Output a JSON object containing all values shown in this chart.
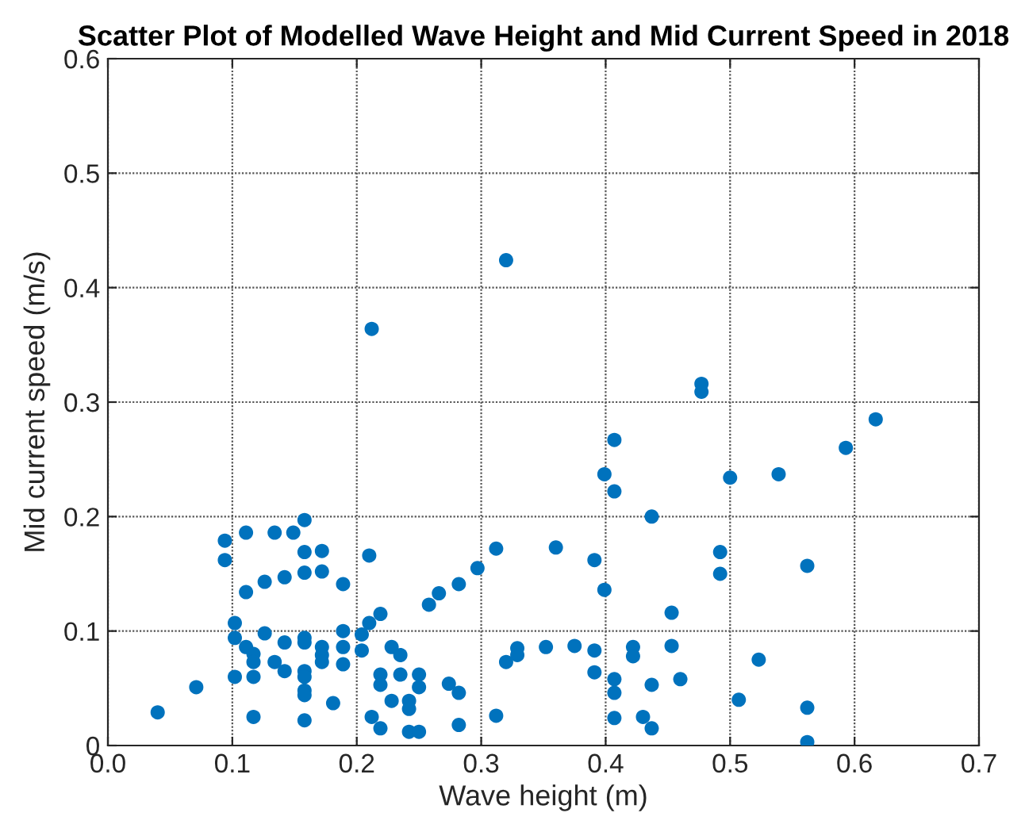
{
  "chart_data": {
    "type": "scatter",
    "title": "Scatter Plot of Modelled Wave Height and Mid Current Speed in 2018",
    "xlabel": "Wave height (m)",
    "ylabel": "Mid current speed (m/s)",
    "xlim": [
      0,
      0.7
    ],
    "xticks": [
      {
        "value": 0,
        "label": "0.0"
      },
      0.1,
      0.2,
      0.3,
      0.4,
      0.5,
      0.6,
      0.7
    ],
    "ylim": [
      0,
      0.6
    ],
    "yticks": [
      {
        "value": 0,
        "label": "0"
      },
      0.1,
      0.2,
      0.3,
      0.4,
      0.5,
      0.6
    ],
    "grid": true,
    "marker": "circle",
    "series": [
      {
        "color": "#0072bd",
        "x": [
          0.04,
          0.071,
          0.094,
          0.094,
          0.111,
          0.134,
          0.149,
          0.158,
          0.158,
          0.172,
          0.111,
          0.126,
          0.142,
          0.158,
          0.172,
          0.189,
          0.102,
          0.102,
          0.111,
          0.117,
          0.117,
          0.126,
          0.134,
          0.142,
          0.142,
          0.158,
          0.158,
          0.158,
          0.158,
          0.158,
          0.158,
          0.172,
          0.172,
          0.172,
          0.189,
          0.189,
          0.189,
          0.181,
          0.102,
          0.117,
          0.117,
          0.158,
          0.204,
          0.204,
          0.21,
          0.21,
          0.212,
          0.219,
          0.228,
          0.235,
          0.219,
          0.219,
          0.235,
          0.25,
          0.25,
          0.228,
          0.242,
          0.242,
          0.219,
          0.242,
          0.25,
          0.274,
          0.282,
          0.282,
          0.312,
          0.258,
          0.266,
          0.282,
          0.297,
          0.312,
          0.36,
          0.329,
          0.329,
          0.32,
          0.352,
          0.375,
          0.391,
          0.391,
          0.391,
          0.399,
          0.399,
          0.407,
          0.407,
          0.477,
          0.477,
          0.617,
          0.593,
          0.5,
          0.539,
          0.437,
          0.492,
          0.492,
          0.562,
          0.453,
          0.422,
          0.422,
          0.453,
          0.407,
          0.407,
          0.437,
          0.46,
          0.523,
          0.507,
          0.562,
          0.407,
          0.43,
          0.437,
          0.562,
          0.212,
          0.32
        ],
        "values": [
          0.029,
          0.051,
          0.179,
          0.162,
          0.186,
          0.186,
          0.186,
          0.197,
          0.169,
          0.17,
          0.134,
          0.143,
          0.147,
          0.151,
          0.152,
          0.141,
          0.107,
          0.094,
          0.086,
          0.08,
          0.073,
          0.098,
          0.073,
          0.09,
          0.065,
          0.094,
          0.09,
          0.065,
          0.06,
          0.048,
          0.044,
          0.086,
          0.079,
          0.073,
          0.1,
          0.086,
          0.071,
          0.037,
          0.06,
          0.06,
          0.025,
          0.022,
          0.097,
          0.083,
          0.107,
          0.166,
          0.025,
          0.115,
          0.086,
          0.079,
          0.062,
          0.053,
          0.062,
          0.062,
          0.051,
          0.039,
          0.039,
          0.032,
          0.015,
          0.012,
          0.012,
          0.054,
          0.046,
          0.018,
          0.026,
          0.123,
          0.133,
          0.141,
          0.155,
          0.172,
          0.173,
          0.085,
          0.079,
          0.073,
          0.086,
          0.087,
          0.083,
          0.064,
          0.162,
          0.136,
          0.237,
          0.267,
          0.222,
          0.316,
          0.309,
          0.285,
          0.26,
          0.234,
          0.237,
          0.2,
          0.169,
          0.15,
          0.157,
          0.116,
          0.086,
          0.078,
          0.087,
          0.058,
          0.046,
          0.053,
          0.058,
          0.075,
          0.04,
          0.033,
          0.024,
          0.025,
          0.015,
          0.003,
          0.364,
          0.424
        ]
      }
    ]
  }
}
